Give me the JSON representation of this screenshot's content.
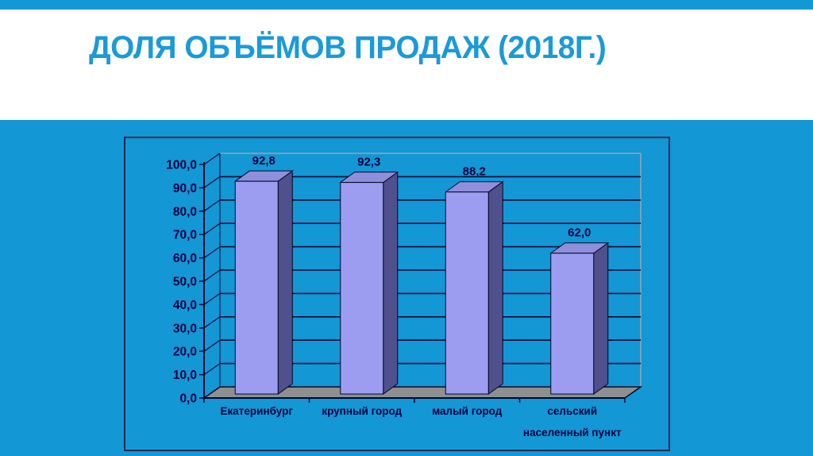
{
  "slide": {
    "title": "ДОЛЯ ОБЪЁМОВ ПРОДАЖ (2018Г.)",
    "title_color": "#1b9ad8",
    "band_color": "#1397d5"
  },
  "chart_data": {
    "type": "bar",
    "style": "3d-column",
    "title": "",
    "xlabel": "",
    "ylabel": "",
    "categories": [
      "Екатеринбург",
      "крупный город",
      "малый город",
      "сельский населенный пункт"
    ],
    "values": [
      92.8,
      92.3,
      88.2,
      62.0
    ],
    "data_labels": [
      "92,8",
      "92,3",
      "88,2",
      "62,0"
    ],
    "y_tick_labels": [
      "100,0",
      "90,0",
      "80,0",
      "70,0",
      "60,0",
      "50,0",
      "40,0",
      "30,0",
      "20,0",
      "10,0",
      "0,0"
    ],
    "ylim": [
      0,
      100
    ],
    "y_step": 10,
    "grid": true,
    "legend": false,
    "category_label_lines": [
      [
        "Екатеринбург"
      ],
      [
        "крупный город"
      ],
      [
        "малый город"
      ],
      [
        "сельский",
        "населенный пункт"
      ]
    ],
    "colors": {
      "bar_front": "#9c9cf0",
      "bar_top": "#8f8fdc",
      "bar_side": "#50508c",
      "bar_outline": "#000828",
      "grid": "#000830",
      "floor": "#8f8f8f",
      "wall_edge": "#9ca3af",
      "text": "#000040"
    }
  }
}
